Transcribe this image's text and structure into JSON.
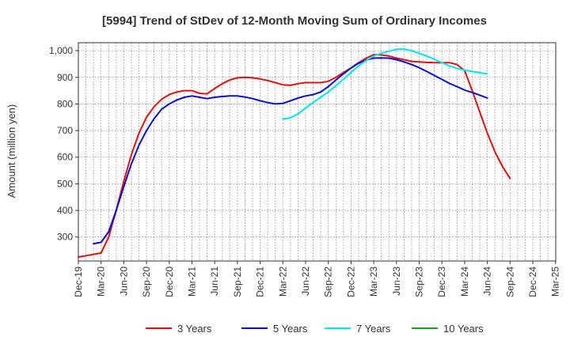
{
  "chart_data": {
    "type": "line",
    "title": "[5994]  Trend of StDev of 12-Month Moving Sum of Ordinary Incomes",
    "xlabel": "",
    "ylabel": "Amount (million yen)",
    "ylim": [
      210,
      1030
    ],
    "yticks": [
      300,
      400,
      500,
      600,
      700,
      800,
      900,
      1000
    ],
    "ytick_labels": [
      "300",
      "400",
      "500",
      "600",
      "700",
      "800",
      "900",
      "1,000"
    ],
    "xlim": [
      0,
      63
    ],
    "categories": [
      "Dec-19",
      "Mar-20",
      "Jun-20",
      "Sep-20",
      "Dec-20",
      "Mar-21",
      "Jun-21",
      "Sep-21",
      "Dec-21",
      "Mar-22",
      "Jun-22",
      "Sep-22",
      "Dec-22",
      "Mar-23",
      "Jun-23",
      "Sep-23",
      "Dec-23",
      "Mar-24",
      "Jun-24",
      "Sep-24",
      "Dec-24",
      "Mar-25"
    ],
    "grid": true,
    "legend_position": "bottom",
    "series": [
      {
        "name": "3 Years",
        "color": "#dd1111",
        "x": [
          0,
          1,
          2,
          3,
          4,
          5,
          6,
          7,
          8,
          9,
          10,
          11,
          12,
          13,
          14,
          15,
          16,
          17,
          18,
          19,
          20,
          21,
          22,
          23,
          24,
          25,
          26,
          27,
          28,
          29,
          30,
          31,
          32,
          33,
          34,
          35,
          36,
          37,
          38,
          39,
          40,
          41,
          42,
          43,
          44,
          45,
          46,
          47,
          48,
          49,
          50,
          51,
          52,
          53,
          54,
          55,
          56,
          57,
          58,
          59,
          60
        ],
        "values": [
          225,
          230,
          235,
          240,
          300,
          400,
          510,
          610,
          690,
          750,
          790,
          818,
          835,
          845,
          850,
          850,
          840,
          838,
          858,
          876,
          890,
          898,
          900,
          898,
          894,
          888,
          880,
          872,
          870,
          876,
          880,
          880,
          880,
          885,
          900,
          918,
          935,
          955,
          972,
          985,
          984,
          980,
          972,
          966,
          960,
          958,
          956,
          955,
          955,
          955,
          948,
          925,
          850,
          770,
          690,
          620,
          565,
          520,
          null,
          null,
          null
        ]
      },
      {
        "name": "5 Years",
        "color": "#0a0acc",
        "x": [
          0,
          1,
          2,
          3,
          4,
          5,
          6,
          7,
          8,
          9,
          10,
          11,
          12,
          13,
          14,
          15,
          16,
          17,
          18,
          19,
          20,
          21,
          22,
          23,
          24,
          25,
          26,
          27,
          28,
          29,
          30,
          31,
          32,
          33,
          34,
          35,
          36,
          37,
          38,
          39,
          40,
          41,
          42,
          43,
          44,
          45,
          46,
          47,
          48,
          49,
          50,
          51,
          52,
          53,
          54,
          55,
          56,
          57,
          58,
          59,
          60
        ],
        "values": [
          null,
          null,
          275,
          280,
          320,
          400,
          490,
          575,
          645,
          700,
          745,
          780,
          800,
          815,
          825,
          830,
          825,
          820,
          825,
          828,
          830,
          830,
          826,
          820,
          812,
          805,
          800,
          802,
          812,
          822,
          830,
          835,
          845,
          865,
          890,
          913,
          935,
          953,
          965,
          972,
          973,
          972,
          966,
          958,
          948,
          936,
          922,
          907,
          892,
          877,
          865,
          852,
          843,
          833,
          822,
          null,
          null,
          null,
          null,
          null,
          null
        ],
        "x_alt": null
      },
      {
        "name": "7 Years",
        "color": "#00e5e5",
        "x": [
          0,
          1,
          2,
          3,
          4,
          5,
          6,
          7,
          8,
          9,
          10,
          11,
          12,
          13,
          14,
          15,
          16,
          17,
          18,
          19,
          20,
          21,
          22,
          23,
          24,
          25,
          26,
          27,
          28,
          29,
          30,
          31,
          32,
          33,
          34,
          35,
          36,
          37,
          38,
          39,
          40,
          41,
          42,
          43,
          44,
          45,
          46,
          47,
          48,
          49,
          50,
          51,
          52,
          53,
          54,
          55,
          56,
          57,
          58,
          59,
          60
        ],
        "values": [
          null,
          null,
          null,
          null,
          null,
          null,
          null,
          null,
          null,
          null,
          null,
          null,
          null,
          null,
          null,
          null,
          null,
          null,
          null,
          null,
          null,
          null,
          null,
          null,
          null,
          null,
          null,
          743,
          748,
          762,
          785,
          805,
          825,
          845,
          868,
          893,
          918,
          943,
          963,
          980,
          990,
          998,
          1005,
          1006,
          1000,
          990,
          980,
          968,
          955,
          943,
          933,
          927,
          922,
          917,
          913,
          null,
          null,
          null,
          null,
          null,
          null
        ],
        "x_alt": null
      },
      {
        "name": "10 Years",
        "color": "#229922",
        "x": [],
        "values": []
      }
    ]
  }
}
